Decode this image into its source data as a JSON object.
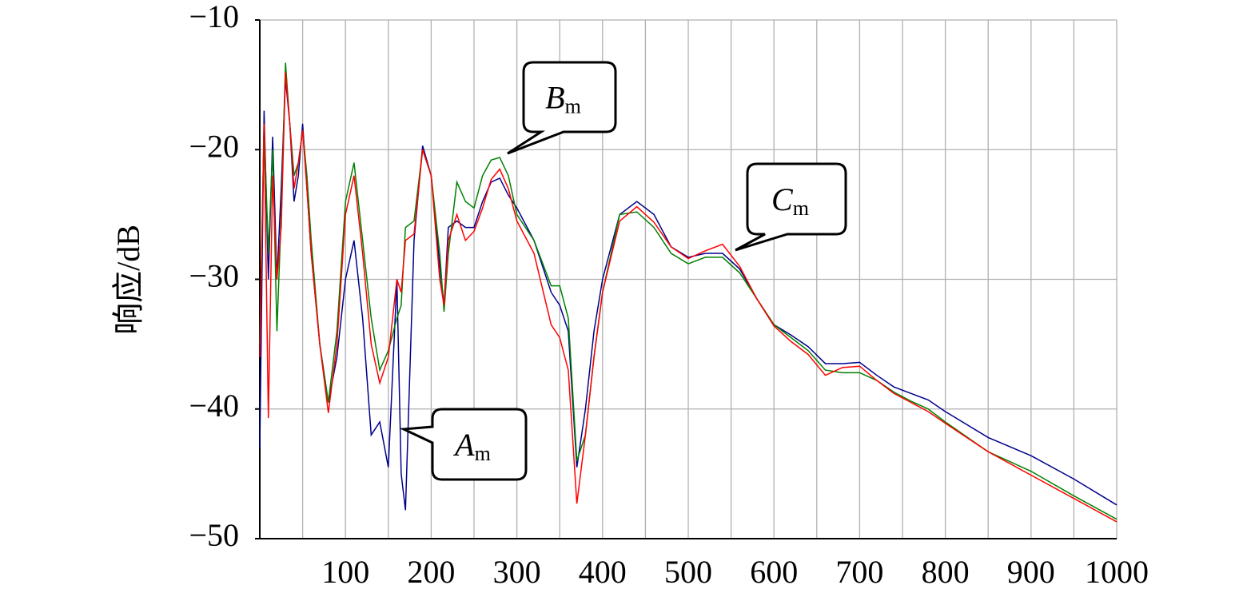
{
  "chart_data": {
    "type": "line",
    "ylabel": "响应/dB",
    "xlim": [
      0,
      1000
    ],
    "xticks": [
      100,
      200,
      300,
      400,
      500,
      600,
      700,
      800,
      900,
      1000
    ],
    "xminor_grid": [
      50,
      150,
      250,
      350,
      450,
      550,
      650,
      750,
      850,
      950
    ],
    "ylim": [
      -50,
      -10
    ],
    "yticks": [
      {
        "value": -50,
        "label": "−50"
      },
      {
        "value": -40,
        "label": "−40"
      },
      {
        "value": -30,
        "label": "−30"
      },
      {
        "value": -20,
        "label": "−20"
      },
      {
        "value": -10,
        "label": "−10"
      }
    ],
    "grid": true,
    "x": [
      0,
      5,
      10,
      15,
      20,
      25,
      30,
      35,
      40,
      45,
      50,
      55,
      60,
      70,
      80,
      90,
      100,
      110,
      120,
      130,
      140,
      150,
      160,
      165,
      170,
      180,
      190,
      200,
      210,
      215,
      220,
      230,
      240,
      250,
      260,
      270,
      280,
      290,
      300,
      320,
      340,
      350,
      360,
      370,
      380,
      390,
      400,
      420,
      440,
      460,
      480,
      500,
      520,
      540,
      560,
      580,
      600,
      620,
      640,
      660,
      680,
      700,
      720,
      740,
      760,
      780,
      800,
      850,
      900,
      950,
      1000
    ],
    "series": [
      {
        "color": "#00008b",
        "values": [
          -43,
          -17,
          -30,
          -19,
          -30,
          -23,
          -14.5,
          -18,
          -24,
          -22,
          -18,
          -23,
          -28,
          -35,
          -39.5,
          -36,
          -30,
          -27,
          -33,
          -42,
          -41,
          -44.5,
          -30,
          -45,
          -47.8,
          -27,
          -19.7,
          -22,
          -29,
          -32,
          -26,
          -25.5,
          -26,
          -26,
          -24,
          -22.5,
          -22.2,
          -23.5,
          -24.5,
          -27,
          -31,
          -32,
          -34,
          -44.5,
          -40,
          -34,
          -30,
          -25,
          -24,
          -25,
          -27.5,
          -28.3,
          -28,
          -28,
          -29.2,
          -31.5,
          -33.5,
          -34.3,
          -35.2,
          -36.5,
          -36.5,
          -36.4,
          -37.4,
          -38.3,
          -38.8,
          -39.3,
          -40.2,
          -42.2,
          -43.6,
          -45.4,
          -47.4
        ]
      },
      {
        "color": "#008000",
        "values": [
          -35,
          -18,
          -28,
          -20,
          -34,
          -25,
          -13.3,
          -18,
          -22,
          -21,
          -18.5,
          -22,
          -27,
          -35,
          -39.5,
          -34,
          -24,
          -21,
          -27,
          -33,
          -37,
          -35.5,
          -33,
          -32,
          -26,
          -25.5,
          -20,
          -22,
          -28,
          -32.5,
          -28,
          -22.5,
          -24,
          -24.5,
          -22,
          -20.8,
          -20.6,
          -22,
          -25,
          -27,
          -30.5,
          -30.5,
          -33,
          -44,
          -42,
          -36,
          -31,
          -25,
          -24.8,
          -26,
          -28,
          -28.8,
          -28.3,
          -28.3,
          -29.5,
          -31.5,
          -33.5,
          -34.5,
          -35.5,
          -37,
          -37.2,
          -37.2,
          -37.8,
          -38.7,
          -39.4,
          -40,
          -41,
          -43.3,
          -44.8,
          -46.7,
          -48.5
        ]
      },
      {
        "color": "#ff0000",
        "values": [
          -36,
          -18,
          -40.7,
          -22,
          -30,
          -26,
          -14,
          -18,
          -23,
          -21,
          -18.5,
          -23,
          -28,
          -35,
          -40.3,
          -35,
          -25,
          -22,
          -28,
          -35,
          -38,
          -36,
          -30,
          -31,
          -27,
          -26.5,
          -20,
          -22,
          -30,
          -32,
          -27,
          -25,
          -27,
          -26.3,
          -24.5,
          -22.3,
          -21.5,
          -23,
          -25.5,
          -28,
          -33.5,
          -34.5,
          -37,
          -47.3,
          -42,
          -36,
          -31,
          -25.5,
          -24.4,
          -25.6,
          -27.5,
          -28.4,
          -27.8,
          -27.3,
          -29,
          -31.5,
          -33.6,
          -34.8,
          -35.8,
          -37.4,
          -36.8,
          -36.7,
          -37.8,
          -38.8,
          -39.5,
          -40.2,
          -41.1,
          -43.3,
          -45.1,
          -46.9,
          -48.7
        ]
      }
    ],
    "annotations": [
      {
        "text": "A",
        "sub": "m"
      },
      {
        "text": "B",
        "sub": "m"
      },
      {
        "text": "C",
        "sub": "m"
      }
    ]
  }
}
